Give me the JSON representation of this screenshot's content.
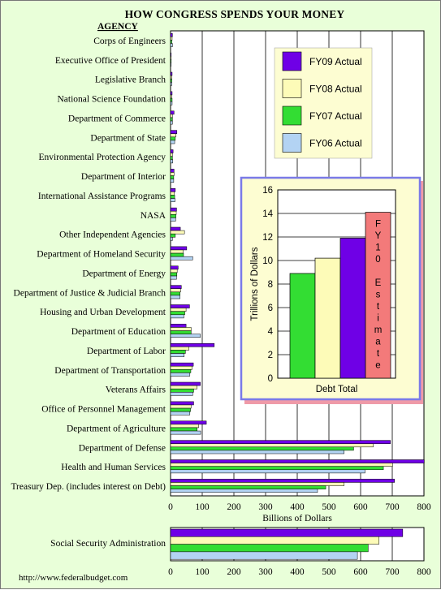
{
  "title": "HOW CONGRESS SPENDS YOUR MONEY",
  "footer": "http://www.federalbudget.com",
  "colors": {
    "fy09": "#6f00e6",
    "fy08": "#fdfbb8",
    "fy07": "#33dd33",
    "fy06": "#b3d3f3",
    "fy10": "#f37a7a",
    "background": "#e9ffd9",
    "inset_bg": "#fdfdd2",
    "inset_border": "#7a7ae8",
    "inset_shadow": "#ef9aa8"
  },
  "chart_data": [
    {
      "type": "bar",
      "orientation": "horizontal",
      "category_header": "AGENCY",
      "xlabel": "Billions of Dollars",
      "xlim": [
        0,
        800
      ],
      "xticks": [
        "0",
        "100",
        "200",
        "300",
        "400",
        "500",
        "600",
        "700",
        "800"
      ],
      "categories": [
        "Corps of Engineers",
        "Executive Office of President",
        "Legislative Branch",
        "National Science Foundation",
        "Department of Commerce",
        "Department of State",
        "Environmental Protection Agency",
        "Department of Interior",
        "International Assistance Programs",
        "NASA",
        "Other Independent Agencies",
        "Department of Homeland Security",
        "Department of Energy",
        "Department of Justice & Judicial Branch",
        "Housing and Urban Development",
        "Department of Education",
        "Department of Labor",
        "Department of Transportation",
        "Veterans Affairs",
        "Office of Personnel Management",
        "Department of Agriculture",
        "Department of Defense",
        "Health and Human Services",
        "Treasury Dep. (includes interest on Debt)"
      ],
      "series": [
        {
          "name": "FY09 Actual",
          "color_key": "fy09",
          "values": [
            6,
            1,
            5,
            5,
            11,
            20,
            8,
            11,
            15,
            19,
            31,
            51,
            24,
            34,
            60,
            49,
            138,
            72,
            94,
            73,
            113,
            694,
            801,
            707
          ]
        },
        {
          "name": "FY08 Actual",
          "color_key": "fy08",
          "values": [
            5,
            1,
            4,
            4,
            6,
            17,
            6,
            11,
            12,
            18,
            44,
            40,
            21,
            32,
            49,
            65,
            58,
            68,
            84,
            65,
            89,
            640,
            701,
            548
          ]
        },
        {
          "name": "FY07 Actual",
          "color_key": "fy07",
          "values": [
            4,
            1,
            4,
            5,
            6,
            15,
            6,
            10,
            13,
            17,
            15,
            41,
            20,
            30,
            45,
            65,
            47,
            64,
            73,
            63,
            84,
            578,
            672,
            490
          ]
        },
        {
          "name": "FY06 Actual",
          "color_key": "fy06",
          "values": [
            6,
            1,
            4,
            5,
            6,
            13,
            7,
            10,
            14,
            16,
            6,
            70,
            19,
            30,
            42,
            94,
            43,
            61,
            70,
            61,
            95,
            548,
            614,
            464
          ]
        }
      ]
    },
    {
      "type": "bar",
      "orientation": "horizontal",
      "categories": [
        "Social Security Administration"
      ],
      "xlim": [
        0,
        800
      ],
      "xticks": [
        "0",
        "100",
        "200",
        "300",
        "400",
        "500",
        "600",
        "700",
        "800"
      ],
      "series": [
        {
          "name": "FY09 Actual",
          "color_key": "fy09",
          "values": [
            733
          ]
        },
        {
          "name": "FY08 Actual",
          "color_key": "fy08",
          "values": [
            658
          ]
        },
        {
          "name": "FY07 Actual",
          "color_key": "fy07",
          "values": [
            624
          ]
        },
        {
          "name": "FY06 Actual",
          "color_key": "fy06",
          "values": [
            590
          ]
        }
      ]
    },
    {
      "type": "bar",
      "orientation": "vertical",
      "category": "Debt Total",
      "ylabel": "Trillions of Dollars",
      "ylim": [
        0,
        16
      ],
      "yticks": [
        "0",
        "2",
        "4",
        "6",
        "8",
        "10",
        "12",
        "14",
        "16"
      ],
      "bars": [
        {
          "series": "FY07 Actual",
          "color_key": "fy07",
          "value": 8.9
        },
        {
          "series": "FY08 Actual",
          "color_key": "fy08",
          "value": 10.2
        },
        {
          "series": "FY09 Actual",
          "color_key": "fy09",
          "value": 11.9
        },
        {
          "series": "FY10 Estimate",
          "color_key": "fy10",
          "value": 14.1,
          "label_lines": [
            "F",
            "Y",
            "1",
            "0",
            "",
            "E",
            "s",
            "t",
            "i",
            "m",
            "a",
            "t",
            "e"
          ]
        }
      ]
    }
  ],
  "legend": [
    {
      "label": "FY09 Actual",
      "color_key": "fy09"
    },
    {
      "label": "FY08 Actual",
      "color_key": "fy08"
    },
    {
      "label": "FY07 Actual",
      "color_key": "fy07"
    },
    {
      "label": "FY06 Actual",
      "color_key": "fy06"
    }
  ]
}
